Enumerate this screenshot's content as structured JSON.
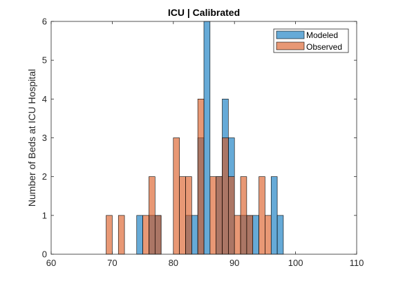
{
  "chart_data": {
    "type": "bar",
    "title": "ICU | Calibrated",
    "xlabel": "",
    "ylabel": "Number of Beds at ICU Hospital",
    "xlim": [
      60,
      110
    ],
    "ylim": [
      0,
      6
    ],
    "xticks": [
      60,
      70,
      80,
      90,
      100,
      110
    ],
    "yticks": [
      0,
      1,
      2,
      3,
      4,
      5,
      6
    ],
    "bin_width": 1,
    "grid": false,
    "legend_position": "top-right",
    "series": [
      {
        "name": "Modeled",
        "color": "#0072BD",
        "bin_starts": [
          74,
          76,
          77,
          82,
          83,
          84,
          85,
          87,
          88,
          89,
          91,
          92,
          93,
          96,
          97
        ],
        "values": [
          1,
          1,
          1,
          1,
          1,
          3,
          6,
          2,
          4,
          3,
          1,
          1,
          1,
          2,
          1
        ]
      },
      {
        "name": "Observed",
        "color": "#D95319",
        "bin_starts": [
          69,
          71,
          75,
          76,
          77,
          80,
          81,
          82,
          84,
          86,
          87,
          88,
          89,
          90,
          91,
          92,
          94,
          95
        ],
        "values": [
          1,
          1,
          1,
          2,
          1,
          3,
          2,
          2,
          4,
          2,
          2,
          3,
          2,
          1,
          2,
          1,
          2,
          1
        ]
      }
    ]
  }
}
